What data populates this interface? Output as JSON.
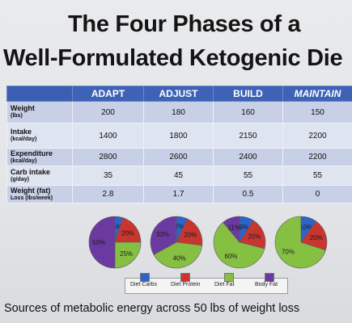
{
  "title": {
    "line1": "The Four Phases of a",
    "line2": "Well-Formulated Ketogenic Die"
  },
  "table": {
    "columns": [
      "ADAPT",
      "ADJUST",
      "BUILD",
      "MAINTAIN"
    ],
    "rows": [
      {
        "label": "Weight",
        "unit": "(lbs)",
        "values": [
          "200",
          "180",
          "160",
          "150"
        ]
      },
      {
        "label": "Intake",
        "unit": "(kcal/day)",
        "values": [
          "1400",
          "1800",
          "2150",
          "2200"
        ]
      },
      {
        "label": "Expenditure",
        "unit": "(kcal/day)",
        "values": [
          "2800",
          "2600",
          "2400",
          "2200"
        ]
      },
      {
        "label": "Carb intake",
        "unit": "(g/day)",
        "values": [
          "35",
          "45",
          "55",
          "55"
        ]
      },
      {
        "label": "Weight (fat)",
        "unit": "Loss (lbs/week)",
        "values": [
          "2.8",
          "1.7",
          "0.5",
          "0"
        ]
      }
    ]
  },
  "chart_data": {
    "type": "pie",
    "colors": {
      "Diet Carbs": "#2f63c8",
      "Diet Protein": "#c9362f",
      "Diet Fat": "#86c042",
      "Body Fat": "#6a3aa0"
    },
    "pies": [
      {
        "phase": "ADAPT",
        "slices": [
          {
            "series": "Diet Carbs",
            "value": 5,
            "label": "5%"
          },
          {
            "series": "Diet Protein",
            "value": 20,
            "label": "20%"
          },
          {
            "series": "Diet Fat",
            "value": 25,
            "label": "25%"
          },
          {
            "series": "Body Fat",
            "value": 50,
            "label": "50%"
          }
        ]
      },
      {
        "phase": "ADJUST",
        "slices": [
          {
            "series": "Diet Carbs",
            "value": 7,
            "label": "7%"
          },
          {
            "series": "Diet Protein",
            "value": 20,
            "label": "20%"
          },
          {
            "series": "Diet Fat",
            "value": 40,
            "label": "40%"
          },
          {
            "series": "Body Fat",
            "value": 33,
            "label": "33%"
          }
        ]
      },
      {
        "phase": "BUILD",
        "slices": [
          {
            "series": "Diet Carbs",
            "value": 9,
            "label": "9%"
          },
          {
            "series": "Diet Protein",
            "value": 20,
            "label": "20%"
          },
          {
            "series": "Diet Fat",
            "value": 60,
            "label": "60%"
          },
          {
            "series": "Body Fat",
            "value": 11,
            "label": "11%"
          }
        ]
      },
      {
        "phase": "MAINTAIN",
        "slices": [
          {
            "series": "Diet Carbs",
            "value": 10,
            "label": "10%"
          },
          {
            "series": "Diet Protein",
            "value": 20,
            "label": "20%"
          },
          {
            "series": "Diet Fat",
            "value": 70,
            "label": "70%"
          },
          {
            "series": "Body Fat",
            "value": 0,
            "label": ""
          }
        ]
      }
    ],
    "legend": [
      "Diet Carbs",
      "Diet Protein",
      "Diet Fat",
      "Body Fat"
    ],
    "legend_placement": "bottom"
  },
  "caption": "Sources of metabolic energy across 50 lbs of weight loss"
}
